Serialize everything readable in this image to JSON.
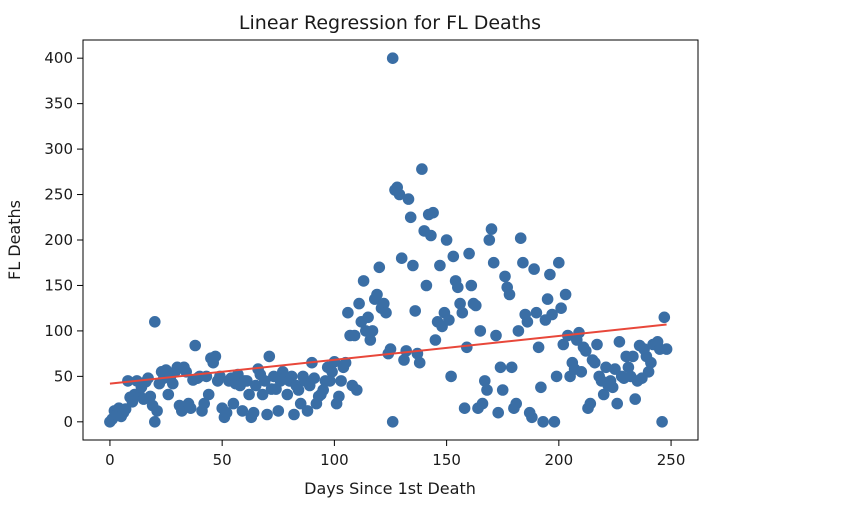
{
  "chart_data": {
    "type": "scatter",
    "title": "Linear Regression for FL Deaths",
    "xlabel": "Days Since 1st Death",
    "ylabel": "FL Deaths",
    "xlim": [
      -12,
      262
    ],
    "ylim": [
      -20,
      420
    ],
    "xticks": [
      0,
      50,
      100,
      150,
      200,
      250
    ],
    "yticks": [
      0,
      50,
      100,
      150,
      200,
      250,
      300,
      350,
      400
    ],
    "point_color": "#3a6ea5",
    "line_color": "#e8473a",
    "regression_line": {
      "x": [
        0,
        248
      ],
      "y": [
        42,
        107
      ]
    },
    "points": [
      [
        0,
        0
      ],
      [
        1,
        3
      ],
      [
        2,
        12
      ],
      [
        3,
        8
      ],
      [
        4,
        15
      ],
      [
        5,
        6
      ],
      [
        6,
        10
      ],
      [
        7,
        14
      ],
      [
        8,
        45
      ],
      [
        9,
        27
      ],
      [
        10,
        22
      ],
      [
        11,
        30
      ],
      [
        12,
        45
      ],
      [
        13,
        30
      ],
      [
        14,
        38
      ],
      [
        15,
        25
      ],
      [
        16,
        44
      ],
      [
        17,
        48
      ],
      [
        18,
        28
      ],
      [
        19,
        18
      ],
      [
        20,
        0
      ],
      [
        20,
        110
      ],
      [
        21,
        12
      ],
      [
        22,
        42
      ],
      [
        23,
        55
      ],
      [
        24,
        48
      ],
      [
        25,
        57
      ],
      [
        26,
        30
      ],
      [
        27,
        50
      ],
      [
        28,
        42
      ],
      [
        29,
        55
      ],
      [
        30,
        60
      ],
      [
        31,
        18
      ],
      [
        32,
        12
      ],
      [
        33,
        60
      ],
      [
        34,
        55
      ],
      [
        35,
        20
      ],
      [
        36,
        15
      ],
      [
        37,
        46
      ],
      [
        38,
        84
      ],
      [
        39,
        48
      ],
      [
        40,
        50
      ],
      [
        41,
        12
      ],
      [
        42,
        20
      ],
      [
        43,
        50
      ],
      [
        44,
        30
      ],
      [
        45,
        70
      ],
      [
        46,
        65
      ],
      [
        47,
        72
      ],
      [
        48,
        45
      ],
      [
        49,
        50
      ],
      [
        50,
        15
      ],
      [
        51,
        5
      ],
      [
        52,
        10
      ],
      [
        53,
        45
      ],
      [
        54,
        48
      ],
      [
        55,
        20
      ],
      [
        56,
        42
      ],
      [
        57,
        52
      ],
      [
        58,
        40
      ],
      [
        59,
        12
      ],
      [
        60,
        45
      ],
      [
        61,
        45
      ],
      [
        62,
        30
      ],
      [
        63,
        5
      ],
      [
        64,
        10
      ],
      [
        65,
        40
      ],
      [
        66,
        58
      ],
      [
        67,
        52
      ],
      [
        68,
        30
      ],
      [
        69,
        45
      ],
      [
        70,
        8
      ],
      [
        71,
        72
      ],
      [
        72,
        36
      ],
      [
        73,
        50
      ],
      [
        74,
        36
      ],
      [
        75,
        12
      ],
      [
        76,
        45
      ],
      [
        77,
        55
      ],
      [
        78,
        48
      ],
      [
        79,
        30
      ],
      [
        80,
        45
      ],
      [
        81,
        50
      ],
      [
        82,
        8
      ],
      [
        83,
        40
      ],
      [
        84,
        35
      ],
      [
        85,
        20
      ],
      [
        86,
        50
      ],
      [
        87,
        45
      ],
      [
        88,
        12
      ],
      [
        89,
        40
      ],
      [
        90,
        65
      ],
      [
        91,
        48
      ],
      [
        92,
        20
      ],
      [
        93,
        28
      ],
      [
        94,
        30
      ],
      [
        95,
        35
      ],
      [
        96,
        45
      ],
      [
        97,
        60
      ],
      [
        98,
        45
      ],
      [
        99,
        55
      ],
      [
        100,
        66
      ],
      [
        101,
        20
      ],
      [
        102,
        28
      ],
      [
        103,
        45
      ],
      [
        104,
        60
      ],
      [
        105,
        65
      ],
      [
        106,
        120
      ],
      [
        107,
        95
      ],
      [
        108,
        40
      ],
      [
        109,
        95
      ],
      [
        110,
        35
      ],
      [
        111,
        130
      ],
      [
        112,
        110
      ],
      [
        113,
        155
      ],
      [
        114,
        100
      ],
      [
        115,
        115
      ],
      [
        116,
        90
      ],
      [
        117,
        100
      ],
      [
        118,
        135
      ],
      [
        119,
        140
      ],
      [
        120,
        170
      ],
      [
        121,
        125
      ],
      [
        122,
        130
      ],
      [
        123,
        120
      ],
      [
        124,
        75
      ],
      [
        125,
        80
      ],
      [
        126,
        0
      ],
      [
        126,
        400
      ],
      [
        127,
        255
      ],
      [
        128,
        258
      ],
      [
        129,
        250
      ],
      [
        130,
        180
      ],
      [
        131,
        68
      ],
      [
        132,
        78
      ],
      [
        133,
        245
      ],
      [
        134,
        225
      ],
      [
        135,
        172
      ],
      [
        136,
        122
      ],
      [
        137,
        75
      ],
      [
        138,
        65
      ],
      [
        139,
        278
      ],
      [
        140,
        210
      ],
      [
        141,
        150
      ],
      [
        142,
        228
      ],
      [
        143,
        205
      ],
      [
        144,
        230
      ],
      [
        145,
        90
      ],
      [
        146,
        110
      ],
      [
        147,
        172
      ],
      [
        148,
        105
      ],
      [
        149,
        120
      ],
      [
        150,
        200
      ],
      [
        151,
        112
      ],
      [
        152,
        50
      ],
      [
        153,
        182
      ],
      [
        154,
        155
      ],
      [
        155,
        148
      ],
      [
        156,
        130
      ],
      [
        157,
        120
      ],
      [
        158,
        15
      ],
      [
        159,
        82
      ],
      [
        160,
        185
      ],
      [
        161,
        150
      ],
      [
        162,
        130
      ],
      [
        163,
        128
      ],
      [
        164,
        15
      ],
      [
        165,
        100
      ],
      [
        166,
        20
      ],
      [
        167,
        45
      ],
      [
        168,
        35
      ],
      [
        169,
        200
      ],
      [
        170,
        212
      ],
      [
        171,
        175
      ],
      [
        172,
        95
      ],
      [
        173,
        10
      ],
      [
        174,
        60
      ],
      [
        175,
        35
      ],
      [
        176,
        160
      ],
      [
        177,
        148
      ],
      [
        178,
        140
      ],
      [
        179,
        60
      ],
      [
        180,
        15
      ],
      [
        181,
        20
      ],
      [
        182,
        100
      ],
      [
        183,
        202
      ],
      [
        184,
        175
      ],
      [
        185,
        118
      ],
      [
        186,
        110
      ],
      [
        187,
        10
      ],
      [
        188,
        5
      ],
      [
        189,
        168
      ],
      [
        190,
        120
      ],
      [
        191,
        82
      ],
      [
        192,
        38
      ],
      [
        193,
        0
      ],
      [
        194,
        112
      ],
      [
        195,
        135
      ],
      [
        196,
        162
      ],
      [
        197,
        118
      ],
      [
        198,
        0
      ],
      [
        199,
        50
      ],
      [
        200,
        175
      ],
      [
        201,
        125
      ],
      [
        202,
        85
      ],
      [
        203,
        140
      ],
      [
        204,
        95
      ],
      [
        205,
        50
      ],
      [
        206,
        65
      ],
      [
        207,
        58
      ],
      [
        208,
        90
      ],
      [
        209,
        98
      ],
      [
        210,
        55
      ],
      [
        211,
        82
      ],
      [
        212,
        78
      ],
      [
        213,
        15
      ],
      [
        214,
        20
      ],
      [
        215,
        68
      ],
      [
        216,
        65
      ],
      [
        217,
        85
      ],
      [
        218,
        50
      ],
      [
        219,
        45
      ],
      [
        220,
        30
      ],
      [
        221,
        60
      ],
      [
        222,
        40
      ],
      [
        223,
        45
      ],
      [
        224,
        38
      ],
      [
        225,
        58
      ],
      [
        226,
        20
      ],
      [
        227,
        88
      ],
      [
        228,
        50
      ],
      [
        229,
        48
      ],
      [
        230,
        72
      ],
      [
        231,
        60
      ],
      [
        232,
        50
      ],
      [
        233,
        72
      ],
      [
        234,
        25
      ],
      [
        235,
        45
      ],
      [
        236,
        84
      ],
      [
        237,
        48
      ],
      [
        238,
        80
      ],
      [
        239,
        72
      ],
      [
        240,
        55
      ],
      [
        241,
        65
      ],
      [
        242,
        85
      ],
      [
        243,
        85
      ],
      [
        244,
        88
      ],
      [
        245,
        80
      ],
      [
        246,
        0
      ],
      [
        247,
        115
      ],
      [
        248,
        80
      ]
    ]
  }
}
